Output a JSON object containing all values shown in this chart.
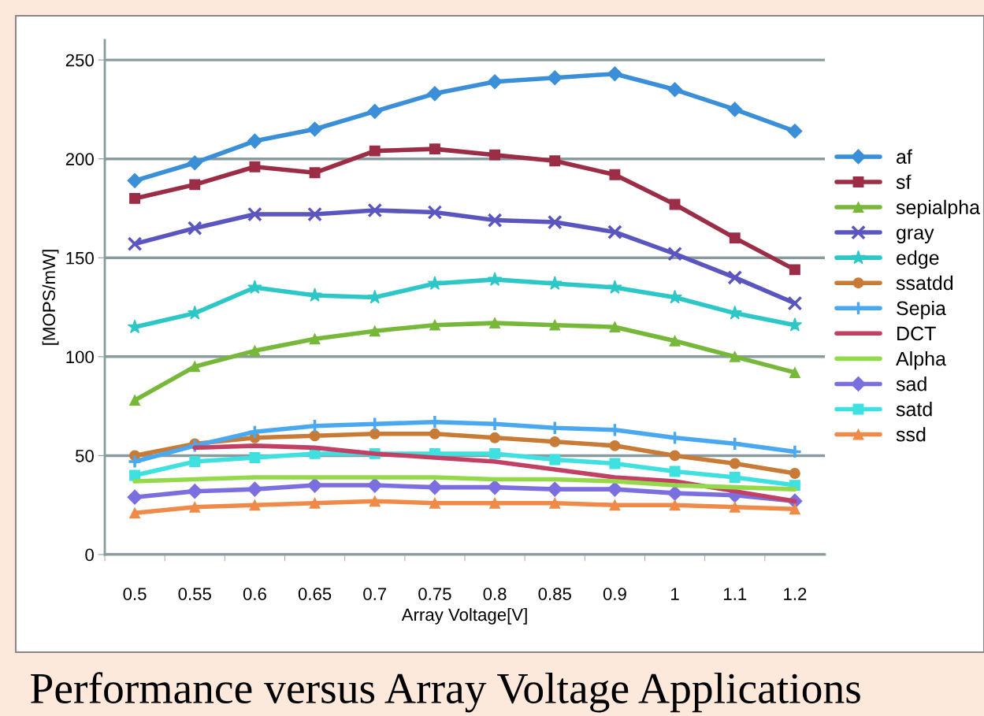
{
  "chart_data": {
    "type": "line",
    "title": "Performance versus Array Voltage Applications",
    "xlabel": "Array Voltage[V]",
    "ylabel": "[MOPS/mW]",
    "categories": [
      "0.5",
      "0.55",
      "0.6",
      "0.65",
      "0.7",
      "0.75",
      "0.8",
      "0.85",
      "0.9",
      "1",
      "1.1",
      "1.2"
    ],
    "ylim": [
      0,
      260
    ],
    "yticks": [
      0,
      50,
      100,
      150,
      200,
      250
    ],
    "grid": "y",
    "legend": "right",
    "line_style": "solid",
    "series": [
      {
        "name": "af",
        "color": "#3a8fd8",
        "marker": "diamond",
        "values": [
          189,
          198,
          209,
          215,
          224,
          233,
          239,
          241,
          243,
          235,
          225,
          214
        ]
      },
      {
        "name": "sf",
        "color": "#9b2d46",
        "marker": "square",
        "values": [
          180,
          187,
          196,
          193,
          204,
          205,
          202,
          199,
          192,
          177,
          160,
          144
        ]
      },
      {
        "name": "sepialpha",
        "color": "#77b83a",
        "marker": "triangle",
        "values": [
          78,
          95,
          103,
          109,
          113,
          116,
          117,
          116,
          115,
          108,
          100,
          92
        ]
      },
      {
        "name": "gray",
        "color": "#5b55c0",
        "marker": "cross",
        "values": [
          157,
          165,
          172,
          172,
          174,
          173,
          169,
          168,
          163,
          152,
          140,
          127
        ]
      },
      {
        "name": "edge",
        "color": "#2ec7c7",
        "marker": "star",
        "values": [
          115,
          122,
          135,
          131,
          130,
          137,
          139,
          137,
          135,
          130,
          122,
          116
        ]
      },
      {
        "name": "ssatdd",
        "color": "#c87b37",
        "marker": "circle",
        "values": [
          50,
          56,
          59,
          60,
          61,
          61,
          59,
          57,
          55,
          50,
          46,
          41
        ]
      },
      {
        "name": "Sepia",
        "color": "#4aa8f0",
        "marker": "plus",
        "values": [
          47,
          55,
          62,
          65,
          66,
          67,
          66,
          64,
          63,
          59,
          56,
          52
        ]
      },
      {
        "name": "DCT",
        "color": "#c24064",
        "marker": "none",
        "values": [
          null,
          54,
          55,
          54,
          51,
          49,
          47,
          43,
          39,
          37,
          32,
          27
        ]
      },
      {
        "name": "Alpha",
        "color": "#93d94a",
        "marker": "none",
        "values": [
          37,
          38,
          39,
          39,
          39,
          39,
          38,
          38,
          37,
          35,
          34,
          33
        ]
      },
      {
        "name": "sad",
        "color": "#7b6fe0",
        "marker": "diamond",
        "values": [
          29,
          32,
          33,
          35,
          35,
          34,
          34,
          33,
          33,
          31,
          30,
          27
        ]
      },
      {
        "name": "satd",
        "color": "#3fe0e0",
        "marker": "square",
        "values": [
          40,
          47,
          49,
          51,
          51,
          51,
          51,
          48,
          46,
          42,
          39,
          35
        ]
      },
      {
        "name": "ssd",
        "color": "#f08a48",
        "marker": "triangle",
        "values": [
          21,
          24,
          25,
          26,
          27,
          26,
          26,
          26,
          25,
          25,
          24,
          23
        ]
      }
    ]
  }
}
